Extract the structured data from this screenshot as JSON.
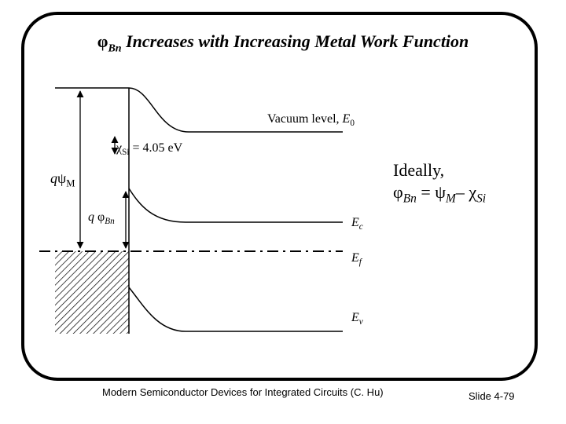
{
  "title": {
    "symbol": "φ",
    "subscript": "Bn",
    "text": " Increases with Increasing Metal Work Function"
  },
  "diagram": {
    "vacuum_label": "Vacuum level, ",
    "vacuum_symbol": "E",
    "vacuum_sub": "0",
    "chi_symbol": "χ",
    "chi_sub": "Si",
    "chi_value": " = 4.05 eV",
    "psi_q": "q",
    "psi_symbol": "ψ",
    "psi_sub": "M",
    "phibn_q": "q ",
    "phibn_symbol": "φ",
    "phibn_sub": "Bn",
    "ideal_text": "Ideally,",
    "formula": {
      "phi": "φ",
      "phi_sub": "Bn",
      "eq": " = ",
      "psi": "ψ",
      "psi_sub": "M",
      "minus": "– ",
      "chi": "χ",
      "chi_sub": "Si"
    },
    "ec_symbol": "E",
    "ec_sub": "c",
    "ef_symbol": "E",
    "ef_sub": "f",
    "ev_symbol": "E",
    "ev_sub": "v"
  },
  "footer": {
    "source": "Modern Semiconductor Devices for Integrated Circuits (C. Hu)",
    "slide": "Slide 4-79"
  }
}
